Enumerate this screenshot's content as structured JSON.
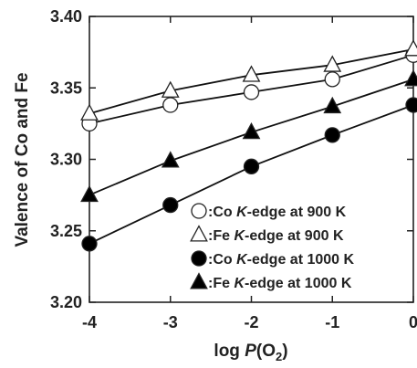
{
  "chart_data": {
    "type": "line",
    "xlabel_parts": {
      "prefix": "log ",
      "italic": "P",
      "open": "(O",
      "sub": "2",
      "close": ")"
    },
    "ylabel": "Valence of Co and Fe",
    "xlim": [
      -4,
      0
    ],
    "ylim": [
      3.2,
      3.4
    ],
    "x_ticks": [
      -4,
      -3,
      -2,
      -1,
      0
    ],
    "x_tick_labels": [
      "-4",
      "-3",
      "-2",
      "-1",
      "0"
    ],
    "y_ticks": [
      3.2,
      3.25,
      3.3,
      3.35,
      3.4
    ],
    "y_tick_labels": [
      "3.20",
      "3.25",
      "3.30",
      "3.35",
      "3.40"
    ],
    "legend_position": "lower-right",
    "series": [
      {
        "name": "Co K-edge at 900 K",
        "name_parts": [
          ":Co ",
          "K",
          "-edge at 900 K"
        ],
        "marker": "circle",
        "filled": false,
        "x": [
          -4,
          -3,
          -2,
          -1,
          0
        ],
        "y": [
          3.325,
          3.338,
          3.347,
          3.356,
          3.373
        ]
      },
      {
        "name": "Fe K-edge at 900 K",
        "name_parts": [
          ":Fe ",
          "K",
          "-edge at 900 K"
        ],
        "marker": "triangle",
        "filled": false,
        "x": [
          -4,
          -3,
          -2,
          -1,
          0
        ],
        "y": [
          3.332,
          3.348,
          3.359,
          3.366,
          3.377
        ]
      },
      {
        "name": "Co K-edge at 1000 K",
        "name_parts": [
          ":Co ",
          "K",
          "-edge at 1000 K"
        ],
        "marker": "circle",
        "filled": true,
        "x": [
          -4,
          -3,
          -2,
          -1,
          0
        ],
        "y": [
          3.241,
          3.268,
          3.295,
          3.317,
          3.338
        ]
      },
      {
        "name": "Fe K-edge at 1000 K",
        "name_parts": [
          ":Fe ",
          "K",
          "-edge at 1000 K"
        ],
        "marker": "triangle",
        "filled": true,
        "x": [
          -4,
          -3,
          -2,
          -1,
          0
        ],
        "y": [
          3.275,
          3.299,
          3.319,
          3.337,
          3.356
        ]
      }
    ]
  }
}
